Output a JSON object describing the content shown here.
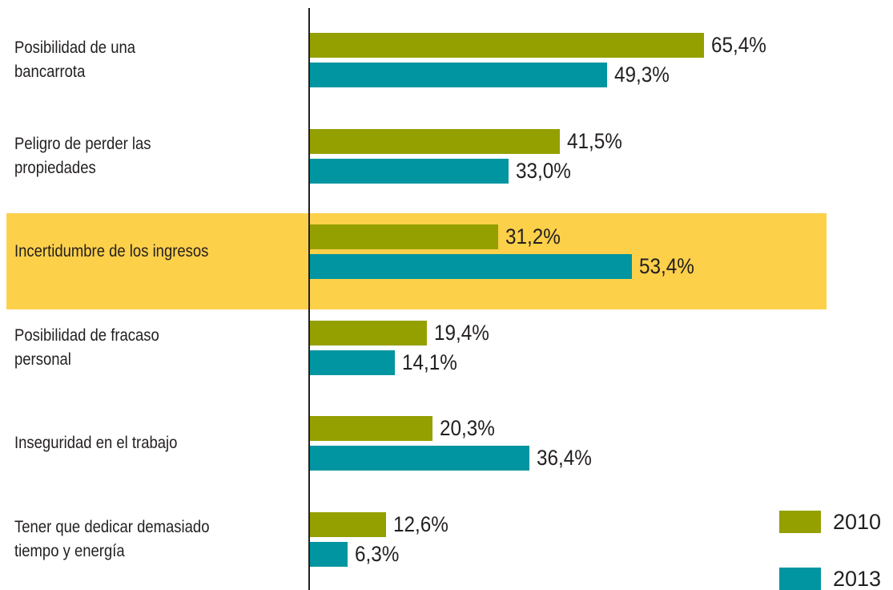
{
  "chart_data": {
    "type": "bar",
    "orientation": "horizontal",
    "categories": [
      [
        "Posibilidad de una",
        "bancarrota"
      ],
      [
        "Peligro de perder las",
        "propiedades"
      ],
      [
        "Incertidumbre de los ingresos"
      ],
      [
        "Posibilidad de fracaso",
        "personal"
      ],
      [
        "Inseguridad en el trabajo"
      ],
      [
        "Tener que dedicar demasiado",
        "tiempo y energía"
      ]
    ],
    "series": [
      {
        "name": "2010",
        "color": "#94a000",
        "values": [
          65.4,
          41.5,
          31.2,
          19.4,
          20.3,
          12.6
        ],
        "value_labels": [
          "65,4%",
          "41,5%",
          "31,2%",
          "19,4%",
          "20,3%",
          "12,6%"
        ]
      },
      {
        "name": "2013",
        "color": "#0095a0",
        "values": [
          49.3,
          33.0,
          53.4,
          14.1,
          36.4,
          6.3
        ],
        "value_labels": [
          "49,3%",
          "33,0%",
          "53,4%",
          "14,1%",
          "36,4%",
          "6,3%"
        ]
      }
    ],
    "highlight_index": 2,
    "highlight_color": "#fdd04a",
    "legend": "lower right"
  }
}
